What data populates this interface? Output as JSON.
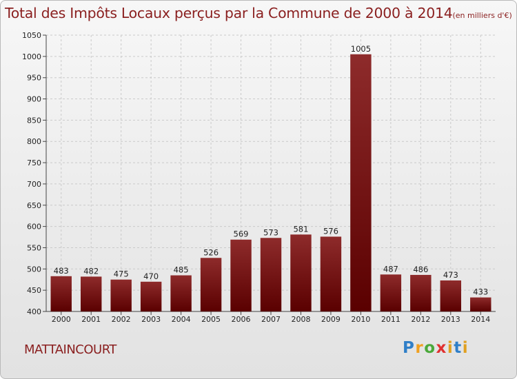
{
  "chart_data": {
    "type": "bar",
    "title": "Total des Impôts Locaux perçus par la Commune de 2000 à 2014",
    "unit": "(en milliers d'€)",
    "categories": [
      "2000",
      "2001",
      "2002",
      "2003",
      "2004",
      "2005",
      "2006",
      "2007",
      "2008",
      "2009",
      "2010",
      "2011",
      "2012",
      "2013",
      "2014"
    ],
    "values": [
      483,
      482,
      475,
      470,
      485,
      526,
      569,
      573,
      581,
      576,
      1005,
      487,
      486,
      473,
      433
    ],
    "ylim": [
      400,
      1050
    ],
    "yticks": [
      400,
      450,
      500,
      550,
      600,
      650,
      700,
      750,
      800,
      850,
      900,
      950,
      1000,
      1050
    ],
    "grid": true,
    "xlabel": "",
    "ylabel": "",
    "bar_color_top": "#8e2b2b",
    "bar_color_bottom": "#5a0000"
  },
  "commune": "MATTAINCOURT",
  "logo": {
    "letters": [
      "P",
      "r",
      "o",
      "x",
      "i",
      "t",
      "i"
    ],
    "colors": [
      "#2f7fc8",
      "#f0a020",
      "#4aa83a",
      "#e03030",
      "#e0a020",
      "#2f7fc8",
      "#e0a020"
    ]
  }
}
